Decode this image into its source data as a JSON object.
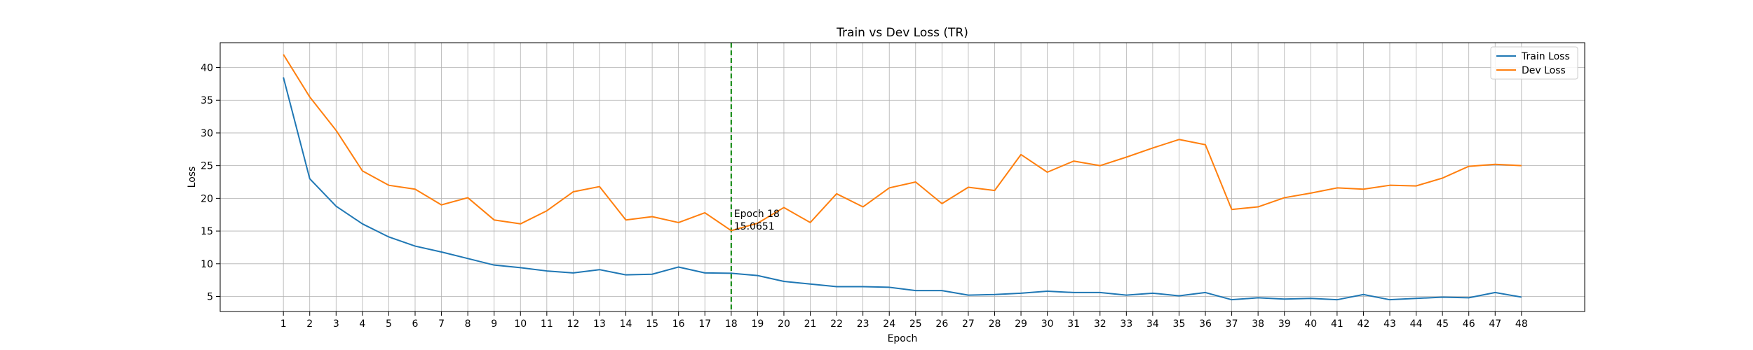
{
  "chart_data": {
    "type": "line",
    "title": "Train vs Dev Loss (TR)",
    "xlabel": "Epoch",
    "ylabel": "Loss",
    "xlim": [
      -1.4,
      50.4
    ],
    "ylim": [
      2.7,
      43.8
    ],
    "x": [
      1,
      2,
      3,
      4,
      5,
      6,
      7,
      8,
      9,
      10,
      11,
      12,
      13,
      14,
      15,
      16,
      17,
      18,
      19,
      20,
      21,
      22,
      23,
      24,
      25,
      26,
      27,
      28,
      29,
      30,
      31,
      32,
      33,
      34,
      35,
      36,
      37,
      38,
      39,
      40,
      41,
      42,
      43,
      44,
      45,
      46,
      47,
      48
    ],
    "x_ticks": [
      1,
      2,
      3,
      4,
      5,
      6,
      7,
      8,
      9,
      10,
      11,
      12,
      13,
      14,
      15,
      16,
      17,
      18,
      19,
      20,
      21,
      22,
      23,
      24,
      25,
      26,
      27,
      28,
      29,
      30,
      31,
      32,
      33,
      34,
      35,
      36,
      37,
      38,
      39,
      40,
      41,
      42,
      43,
      44,
      45,
      46,
      47,
      48
    ],
    "y_ticks": [
      5,
      10,
      15,
      20,
      25,
      30,
      35,
      40
    ],
    "grid": true,
    "legend_position": "top-right",
    "series": [
      {
        "name": "Train Loss",
        "color": "#1f77b4",
        "values": [
          38.5,
          23.0,
          18.8,
          16.1,
          14.1,
          12.7,
          11.8,
          10.8,
          9.8,
          9.4,
          8.9,
          8.6,
          9.1,
          8.3,
          8.4,
          9.5,
          8.6,
          8.55,
          8.2,
          7.3,
          6.9,
          6.5,
          6.5,
          6.4,
          5.9,
          5.9,
          5.2,
          5.3,
          5.5,
          5.8,
          5.6,
          5.6,
          5.2,
          5.5,
          5.1,
          5.6,
          4.5,
          4.8,
          4.6,
          4.7,
          4.5,
          5.3,
          4.5,
          4.7,
          4.9,
          4.8,
          5.6,
          4.9
        ]
      },
      {
        "name": "Dev Loss",
        "color": "#ff7f0e",
        "values": [
          42.0,
          35.5,
          30.4,
          24.2,
          22.0,
          21.4,
          19.0,
          20.1,
          16.7,
          16.1,
          18.1,
          21.0,
          21.8,
          16.7,
          17.2,
          16.3,
          17.8,
          15.0651,
          16.2,
          18.6,
          16.3,
          20.7,
          18.7,
          21.6,
          22.5,
          19.2,
          21.7,
          21.2,
          26.7,
          24.0,
          25.7,
          25.0,
          26.3,
          27.7,
          29.0,
          28.2,
          18.3,
          18.7,
          20.1,
          20.8,
          21.6,
          21.4,
          22.0,
          21.9,
          23.1,
          24.9,
          25.2,
          25.0
        ]
      }
    ],
    "vline": {
      "x": 18,
      "color": "#008000",
      "style": "dashed"
    },
    "annotation": {
      "x": 18,
      "y": 15.0651,
      "lines": [
        "Epoch 18",
        "15.0651"
      ]
    }
  }
}
